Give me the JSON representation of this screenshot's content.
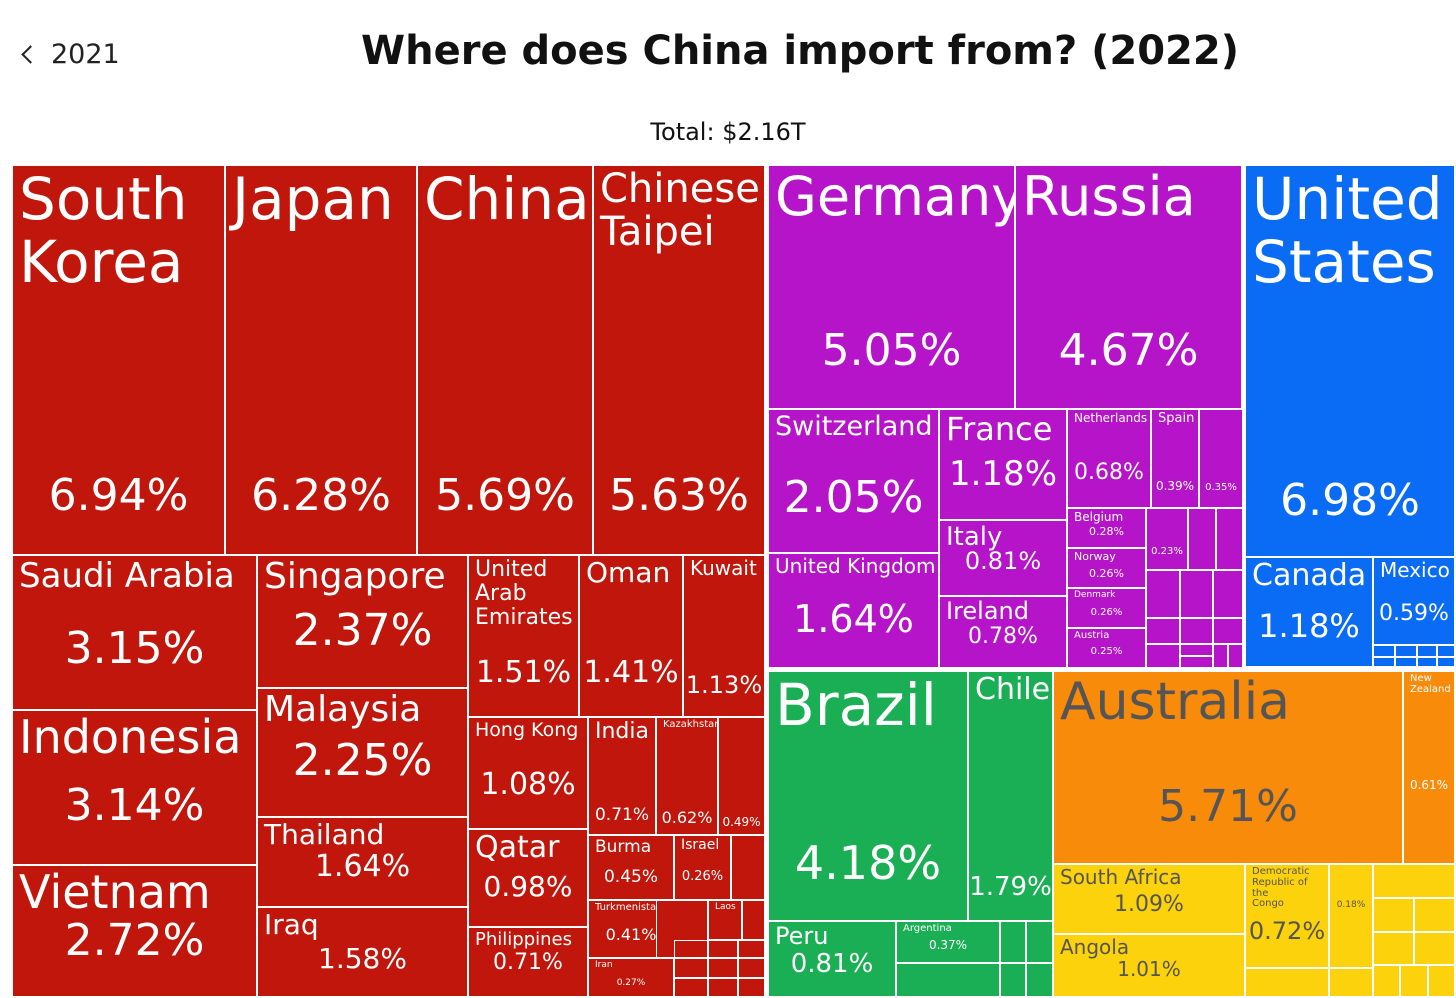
{
  "header": {
    "back_label": "2021",
    "back_icon": "chevron-left-icon",
    "title": "Where does China import from? (2022)",
    "total": "Total: $2.16T"
  },
  "chart_data": {
    "type": "treemap",
    "title": "Where does China import from? (2022)",
    "subtitle": "Total: $2.16T",
    "unit": "%",
    "regions": [
      {
        "region": "asia",
        "color": "#c0160b",
        "countries": [
          {
            "name": "South Korea",
            "label": "South\nKorea",
            "value": 6.94
          },
          {
            "name": "Japan",
            "label": "Japan",
            "value": 6.28
          },
          {
            "name": "China",
            "label": "China",
            "value": 5.69
          },
          {
            "name": "Chinese Taipei",
            "label": "Chinese\nTaipei",
            "value": 5.63
          },
          {
            "name": "Saudi Arabia",
            "label": "Saudi Arabia",
            "value": 3.15
          },
          {
            "name": "Indonesia",
            "label": "Indonesia",
            "value": 3.14
          },
          {
            "name": "Vietnam",
            "label": "Vietnam",
            "value": 2.72
          },
          {
            "name": "Singapore",
            "label": "Singapore",
            "value": 2.37
          },
          {
            "name": "Malaysia",
            "label": "Malaysia",
            "value": 2.25
          },
          {
            "name": "Thailand",
            "label": "Thailand",
            "value": 1.64
          },
          {
            "name": "Iraq",
            "label": "Iraq",
            "value": 1.58
          },
          {
            "name": "United Arab Emirates",
            "label": "United\nArab\nEmirates",
            "value": 1.51
          },
          {
            "name": "Oman",
            "label": "Oman",
            "value": 1.41
          },
          {
            "name": "Kuwait",
            "label": "Kuwait",
            "value": 1.13
          },
          {
            "name": "Hong Kong",
            "label": "Hong Kong",
            "value": 1.08
          },
          {
            "name": "Qatar",
            "label": "Qatar",
            "value": 0.98
          },
          {
            "name": "Philippines",
            "label": "Philippines",
            "value": 0.71
          },
          {
            "name": "India",
            "label": "India",
            "value": 0.71
          },
          {
            "name": "Kazakhstan",
            "label": "Kazakhstan",
            "value": 0.62
          },
          {
            "name": "",
            "label": "",
            "value": 0.49
          },
          {
            "name": "Burma",
            "label": "Burma",
            "value": 0.45
          },
          {
            "name": "Israel",
            "label": "Israel",
            "value": 0.26
          },
          {
            "name": "Turkmenistan",
            "label": "Turkmenistan",
            "value": 0.41
          },
          {
            "name": "Laos",
            "label": "Laos",
            "value": null
          },
          {
            "name": "Iran",
            "label": "Iran",
            "value": 0.27
          }
        ]
      },
      {
        "region": "europe",
        "color": "#b514c9",
        "countries": [
          {
            "name": "Germany",
            "label": "Germany",
            "value": 5.05
          },
          {
            "name": "Russia",
            "label": "Russia",
            "value": 4.67
          },
          {
            "name": "Switzerland",
            "label": "Switzerland",
            "value": 2.05
          },
          {
            "name": "United Kingdom",
            "label": "United Kingdom",
            "value": 1.64
          },
          {
            "name": "France",
            "label": "France",
            "value": 1.18
          },
          {
            "name": "Italy",
            "label": "Italy",
            "value": 0.81
          },
          {
            "name": "Ireland",
            "label": "Ireland",
            "value": 0.78
          },
          {
            "name": "Netherlands",
            "label": "Netherlands",
            "value": 0.68
          },
          {
            "name": "Spain",
            "label": "Spain",
            "value": 0.39
          },
          {
            "name": "",
            "label": "",
            "value": 0.35
          },
          {
            "name": "Belgium",
            "label": "Belgium",
            "value": 0.28
          },
          {
            "name": "Norway",
            "label": "Norway",
            "value": 0.26
          },
          {
            "name": "Denmark",
            "label": "Denmark",
            "value": 0.26
          },
          {
            "name": "Austria",
            "label": "Austria",
            "value": 0.25
          },
          {
            "name": "",
            "label": "",
            "value": 0.23
          }
        ]
      },
      {
        "region": "north_america",
        "color": "#0a6cf5",
        "countries": [
          {
            "name": "United States",
            "label": "United\nStates",
            "value": 6.98
          },
          {
            "name": "Canada",
            "label": "Canada",
            "value": 1.18
          },
          {
            "name": "Mexico",
            "label": "Mexico",
            "value": 0.59
          }
        ]
      },
      {
        "region": "south_america",
        "color": "#1aaf54",
        "countries": [
          {
            "name": "Brazil",
            "label": "Brazil",
            "value": 4.18
          },
          {
            "name": "Chile",
            "label": "Chile",
            "value": 1.79
          },
          {
            "name": "Peru",
            "label": "Peru",
            "value": 0.81
          },
          {
            "name": "Argentina",
            "label": "Argentina",
            "value": 0.37
          }
        ]
      },
      {
        "region": "oceania",
        "color": "#f98b0b",
        "countries": [
          {
            "name": "Australia",
            "label": "Australia",
            "value": 5.71
          },
          {
            "name": "New Zealand",
            "label": "New\nZealand",
            "value": 0.61
          }
        ]
      },
      {
        "region": "africa",
        "color": "#fcd20c",
        "countries": [
          {
            "name": "South Africa",
            "label": "South Africa",
            "value": 1.09
          },
          {
            "name": "Angola",
            "label": "Angola",
            "value": 1.01
          },
          {
            "name": "Democratic Republic of the Congo",
            "label": "Democratic\nRepublic of the\nCongo",
            "value": 0.72
          },
          {
            "name": "",
            "label": "",
            "value": 0.18
          }
        ]
      }
    ]
  }
}
